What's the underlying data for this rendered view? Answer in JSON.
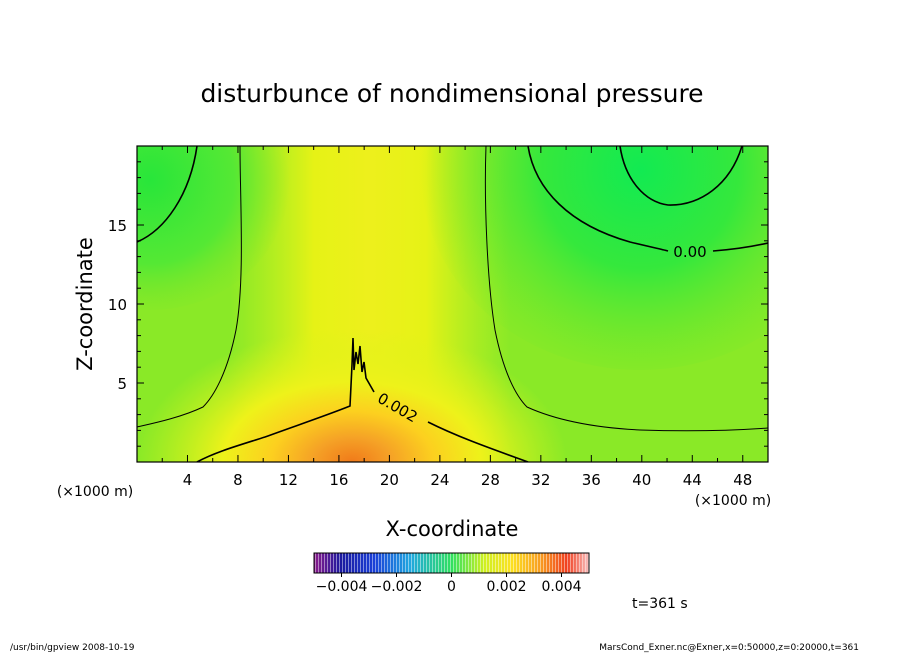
{
  "chart_data": {
    "type": "heatmap",
    "title": "disturbunce of nondimensional pressure",
    "xlabel": "X-coordinate",
    "ylabel": "Z-coordinate",
    "x_unit_left": "(×1000 m)",
    "x_unit_right": "(×1000 m)",
    "xlim": [
      0,
      50
    ],
    "ylim": [
      0,
      20
    ],
    "xticks": [
      4,
      8,
      12,
      16,
      20,
      24,
      28,
      32,
      36,
      40,
      44,
      48
    ],
    "xtick_labels": [
      "4",
      "8",
      "12",
      "16",
      "20",
      "24",
      "28",
      "32",
      "36",
      "40",
      "44",
      "48"
    ],
    "yticks": [
      5,
      10,
      15
    ],
    "ytick_labels": [
      "5",
      "10",
      "15"
    ],
    "contour_labels": [
      {
        "text": "0.00",
        "x": 43.5,
        "y": 13.2
      },
      {
        "text": "0.002",
        "x": 21.5,
        "y": 3.5
      }
    ],
    "colorbar": {
      "min": -0.005,
      "max": 0.005,
      "tick_values": [
        -0.004,
        -0.002,
        0,
        0.002,
        0.004
      ],
      "tick_labels": [
        "−0.004",
        "−0.002",
        "0",
        "0.002",
        "0.004"
      ]
    },
    "time_label": "t=361 s",
    "footer_left": "/usr/bin/gpview   2008-10-19",
    "footer_right": "MarsCond_Exner.nc@Exner,x=0:50000,z=0:20000,t=361"
  }
}
